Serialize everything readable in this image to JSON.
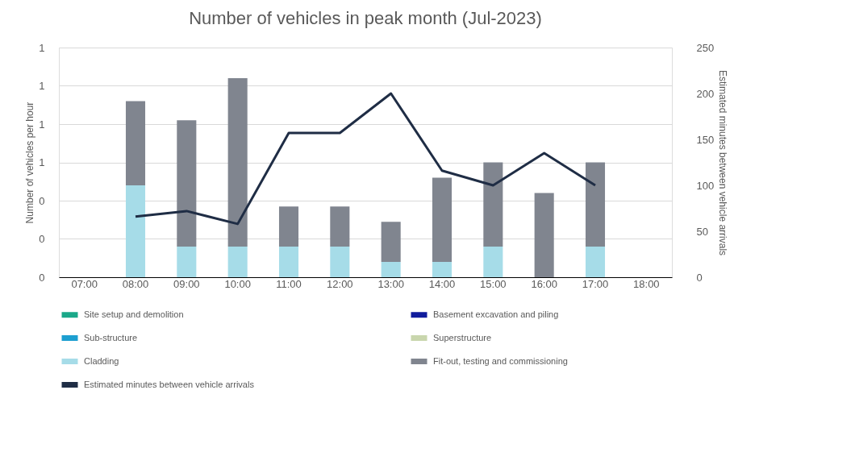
{
  "chart_data": {
    "type": "bar",
    "title": "Number of vehicles in peak month (Jul-2023)",
    "ylabel": "Number of vehicles per hour",
    "y2label": "Estimated minutes between vehicle arrivals",
    "categories": [
      "07:00",
      "08:00",
      "09:00",
      "10:00",
      "11:00",
      "12:00",
      "13:00",
      "14:00",
      "15:00",
      "16:00",
      "17:00",
      "18:00"
    ],
    "stacked": true,
    "ylim": [
      0,
      1.2
    ],
    "yticks": [
      {
        "value": 0,
        "label": "0"
      },
      {
        "value": 0.2,
        "label": "0"
      },
      {
        "value": 0.4,
        "label": "0"
      },
      {
        "value": 0.6,
        "label": "1"
      },
      {
        "value": 0.8,
        "label": "1"
      },
      {
        "value": 1.0,
        "label": "1"
      },
      {
        "value": 1.2,
        "label": "1"
      }
    ],
    "y2lim": [
      0,
      250
    ],
    "y2ticks": [
      0,
      50,
      100,
      150,
      200,
      250
    ],
    "grid": "y",
    "legend": "bottom",
    "series": [
      {
        "name": "Site setup and demolition",
        "color": "#1aa889",
        "values": [
          null,
          null,
          null,
          null,
          null,
          null,
          null,
          null,
          null,
          null,
          null,
          null
        ]
      },
      {
        "name": "Basement excavation and piling",
        "color": "#101c9c",
        "values": [
          null,
          null,
          null,
          null,
          null,
          null,
          null,
          null,
          null,
          null,
          null,
          null
        ]
      },
      {
        "name": "Sub-structure",
        "color": "#1d9fd0",
        "values": [
          null,
          null,
          null,
          null,
          null,
          null,
          null,
          null,
          null,
          null,
          null,
          null
        ]
      },
      {
        "name": "Superstructure",
        "color": "#c9d6ad",
        "values": [
          null,
          null,
          null,
          null,
          null,
          null,
          null,
          null,
          null,
          null,
          null,
          null
        ]
      },
      {
        "name": "Cladding",
        "color": "#a6dce8",
        "values": [
          null,
          0.48,
          0.16,
          0.16,
          0.16,
          0.16,
          0.08,
          0.08,
          0.16,
          0,
          0.16,
          null
        ]
      },
      {
        "name": "Fit-out, testing and commissioning",
        "color": "#80858f",
        "values": [
          null,
          0.44,
          0.66,
          0.88,
          0.21,
          0.21,
          0.21,
          0.44,
          0.44,
          0.44,
          0.44,
          null
        ]
      },
      {
        "name": "Estimated minutes between vehicle arrivals",
        "color": "#1f2d45",
        "type": "line",
        "axis": "y2",
        "values": [
          null,
          66,
          72,
          58,
          157,
          157,
          200,
          116,
          100,
          135,
          100,
          null
        ]
      }
    ]
  }
}
